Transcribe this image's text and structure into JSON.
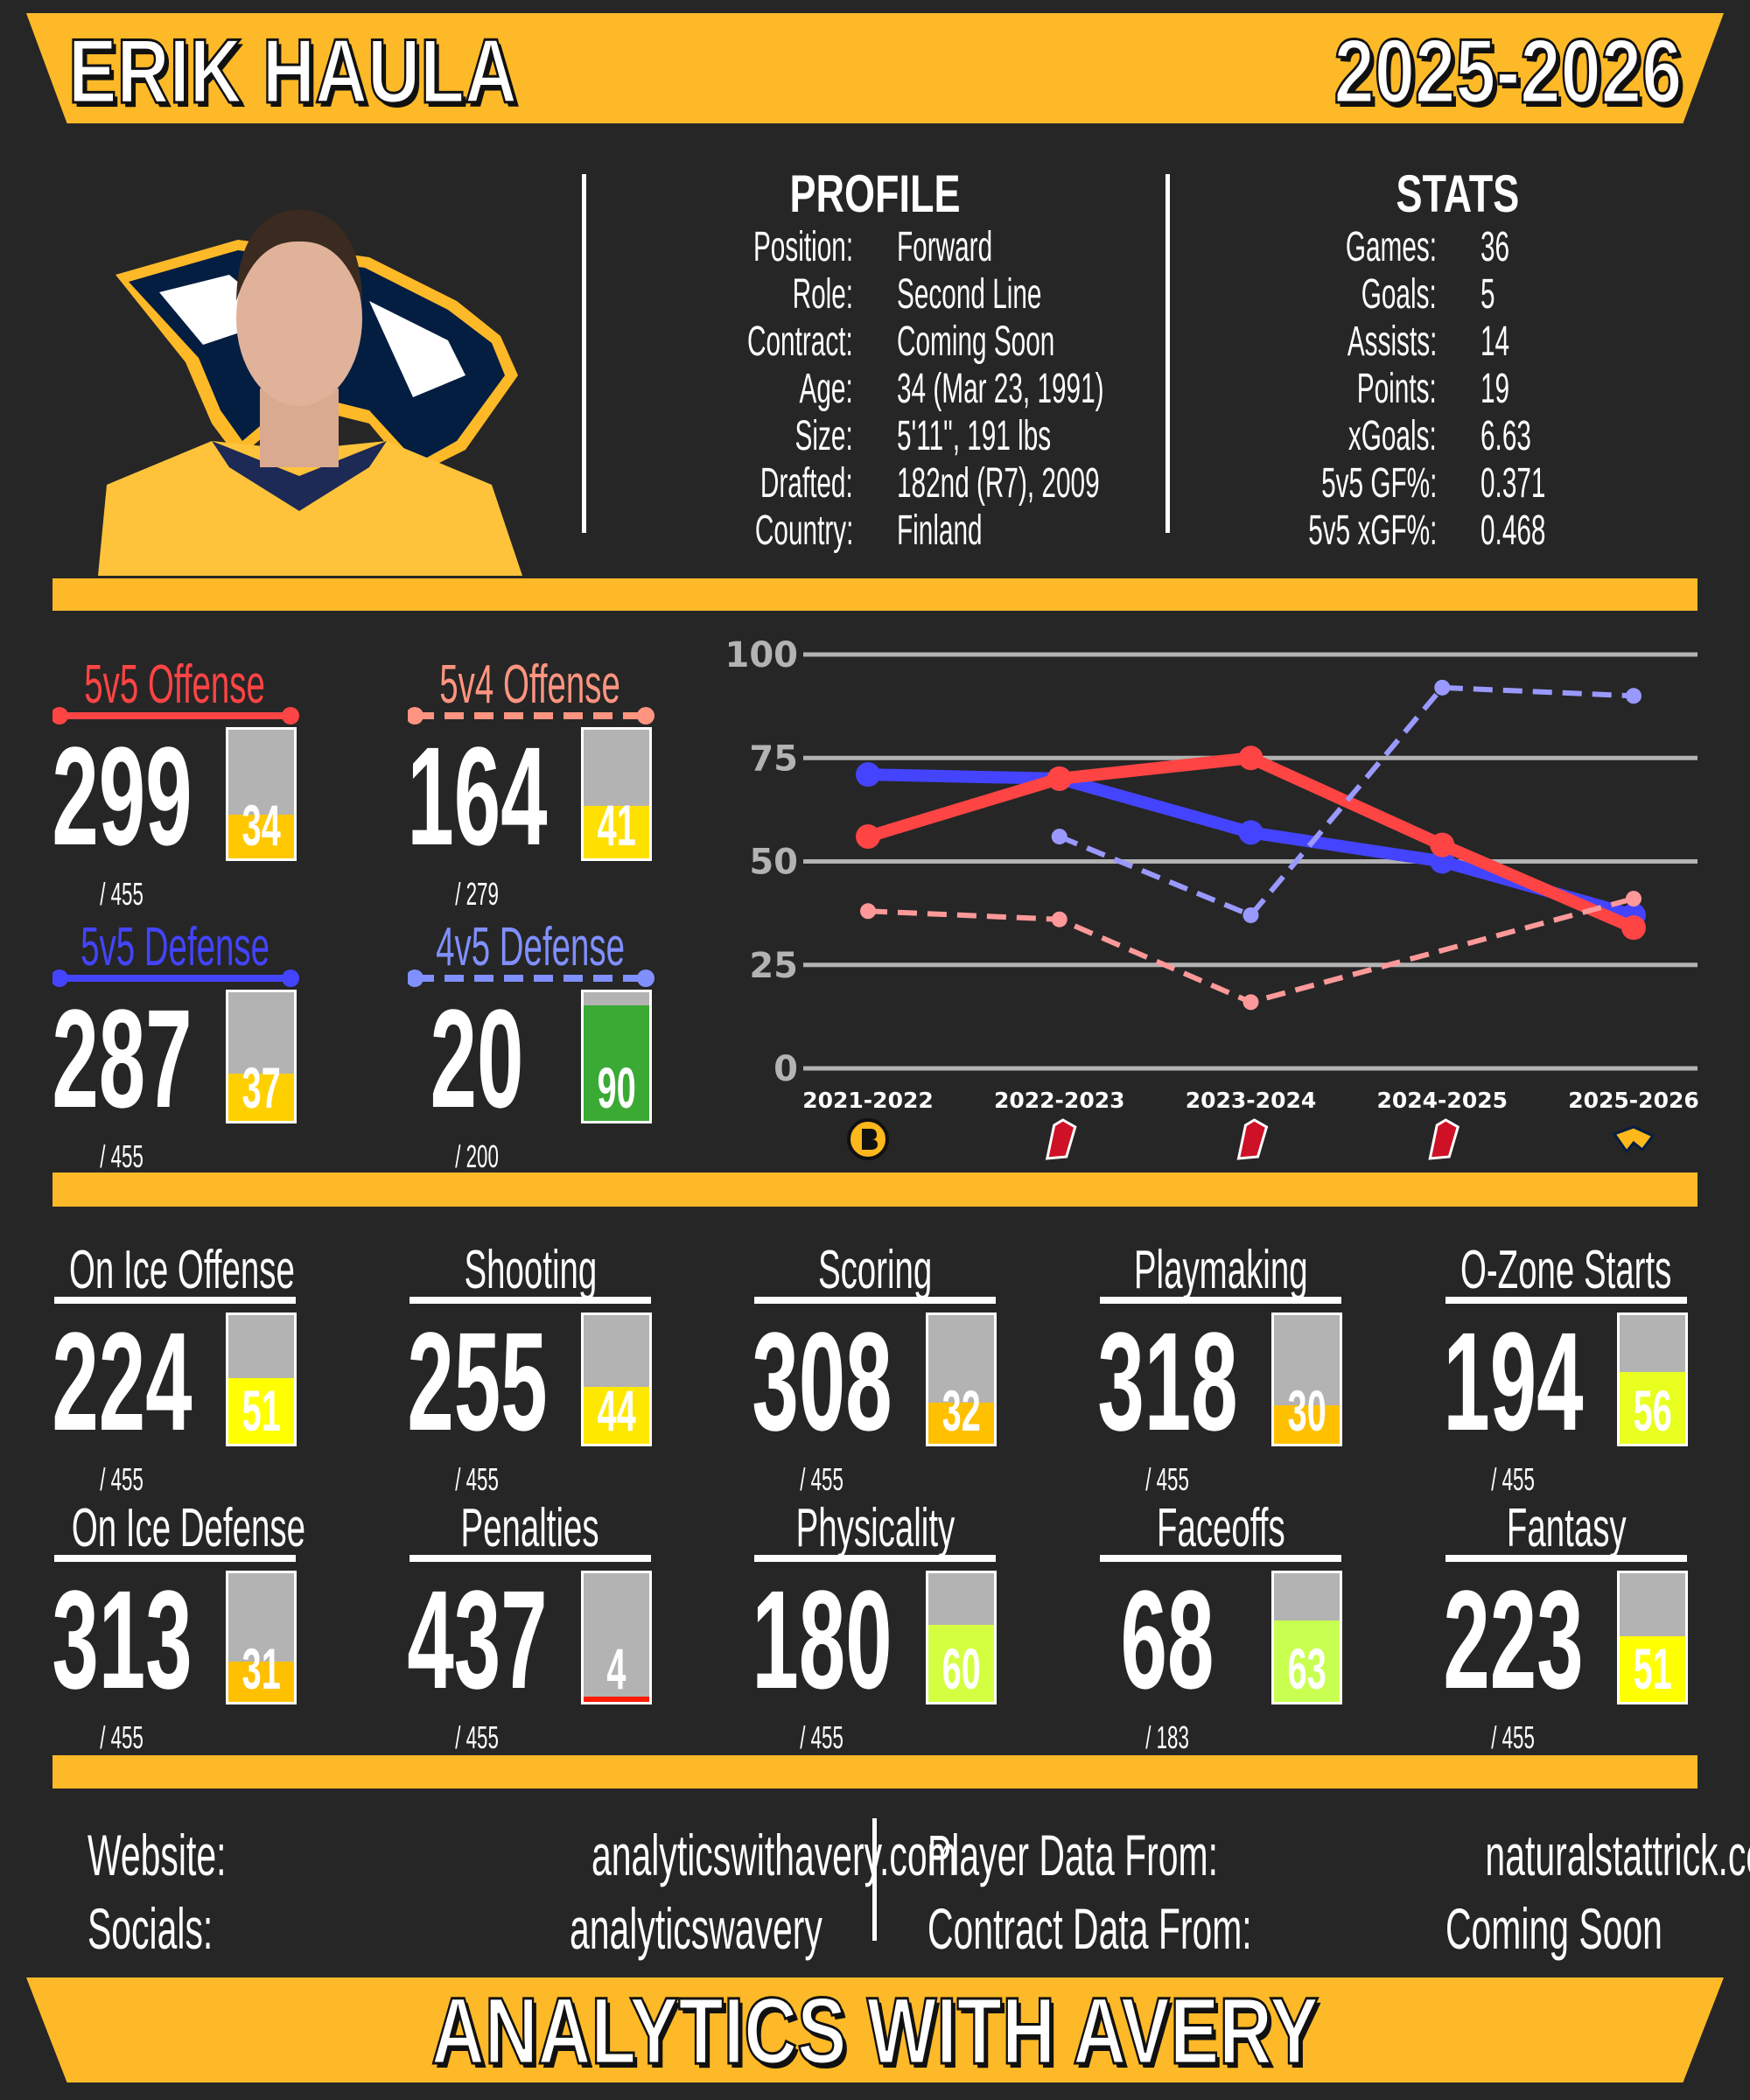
{
  "header": {
    "player_name": "ERIK HAULA",
    "season": "2025-2026"
  },
  "profile": {
    "title": "PROFILE",
    "rows": [
      {
        "label": "Position:",
        "value": "Forward"
      },
      {
        "label": "Role:",
        "value": "Second Line"
      },
      {
        "label": "Contract:",
        "value": "Coming Soon"
      },
      {
        "label": "Age:",
        "value": "34 (Mar 23, 1991)"
      },
      {
        "label": "Size:",
        "value": "5'11\", 191 lbs"
      },
      {
        "label": "Drafted:",
        "value": "182nd (R7), 2009"
      },
      {
        "label": "Country:",
        "value": "Finland"
      }
    ]
  },
  "stats": {
    "title": "STATS",
    "rows": [
      {
        "label": "Games:",
        "value": "36"
      },
      {
        "label": "Goals:",
        "value": "5"
      },
      {
        "label": "Assists:",
        "value": "14"
      },
      {
        "label": "Points:",
        "value": "19"
      },
      {
        "label": "xGoals:",
        "value": "6.63"
      },
      {
        "label": "5v5 GF%:",
        "value": "0.371"
      },
      {
        "label": "5v5 xGF%:",
        "value": "0.468"
      }
    ]
  },
  "ratings": [
    {
      "title": "5v5 Offense",
      "rank": "299",
      "total": "/ 455",
      "percentile": 34,
      "title_color": "#FF4444",
      "bar_color": "#FFC800",
      "line": "solid"
    },
    {
      "title": "5v4 Offense",
      "rank": "164",
      "total": "/ 279",
      "percentile": 41,
      "title_color": "#FF9580",
      "bar_color": "#FFE000",
      "line": "dashed"
    },
    {
      "title": "5v5 Defense",
      "rank": "287",
      "total": "/ 455",
      "percentile": 37,
      "title_color": "#4444FF",
      "bar_color": "#FFD000",
      "line": "solid"
    },
    {
      "title": "4v5 Defense",
      "rank": "20",
      "total": "/ 200",
      "percentile": 90,
      "title_color": "#8090FF",
      "bar_color": "#3AAA35",
      "line": "dashed"
    }
  ],
  "categories": [
    {
      "title": "On Ice Offense",
      "rank": "224",
      "total": "/ 455",
      "percentile": 51,
      "bar_color": "#FFFF00"
    },
    {
      "title": "Shooting",
      "rank": "255",
      "total": "/ 455",
      "percentile": 44,
      "bar_color": "#FFE800"
    },
    {
      "title": "Scoring",
      "rank": "308",
      "total": "/ 455",
      "percentile": 32,
      "bar_color": "#FFC000"
    },
    {
      "title": "Playmaking",
      "rank": "318",
      "total": "/ 455",
      "percentile": 30,
      "bar_color": "#FFC000"
    },
    {
      "title": "O-Zone Starts",
      "rank": "194",
      "total": "/ 455",
      "percentile": 56,
      "bar_color": "#E8FF20"
    },
    {
      "title": "On Ice Defense",
      "rank": "313",
      "total": "/ 455",
      "percentile": 31,
      "bar_color": "#FFC000"
    },
    {
      "title": "Penalties",
      "rank": "437",
      "total": "/ 455",
      "percentile": 4,
      "bar_color": "#FF1A00"
    },
    {
      "title": "Physicality",
      "rank": "180",
      "total": "/ 455",
      "percentile": 60,
      "bar_color": "#D4FF40"
    },
    {
      "title": "Faceoffs",
      "rank": "68",
      "total": "/ 183",
      "percentile": 63,
      "bar_color": "#C8FF50"
    },
    {
      "title": "Fantasy",
      "rank": "223",
      "total": "/ 455",
      "percentile": 51,
      "bar_color": "#FFFF00"
    }
  ],
  "chart_data": {
    "type": "line",
    "categories": [
      "2021-2022",
      "2022-2023",
      "2023-2024",
      "2024-2025",
      "2025-2026"
    ],
    "team_logos": [
      "boston-bruins-logo",
      "new-jersey-devils-logo",
      "new-jersey-devils-logo",
      "new-jersey-devils-logo",
      "nashville-predators-logo"
    ],
    "ylim": [
      0,
      100
    ],
    "yticks": [
      "0",
      "25",
      "50",
      "75",
      "100"
    ],
    "grid": true,
    "series": [
      {
        "key": "5v5 Defense",
        "values": [
          71,
          70,
          57,
          50,
          37
        ],
        "color": "#4444FF",
        "style": "solid"
      },
      {
        "key": "5v5 Offense",
        "values": [
          56,
          70,
          75,
          54,
          34
        ],
        "color": "#FF4444",
        "style": "solid"
      },
      {
        "key": "4v5 Defense",
        "values": [
          null,
          56,
          37,
          92,
          90
        ],
        "color": "#9999FF",
        "style": "dashed"
      },
      {
        "key": "5v4 Offense",
        "values": [
          38,
          36,
          16,
          null,
          41
        ],
        "color": "#FF9999",
        "style": "dashed"
      }
    ]
  },
  "footer": {
    "website_label": "Website:",
    "website": "analyticswithavery.com",
    "socials_label": "Socials:",
    "socials": "analyticswavery",
    "player_data_label": "Player Data From:",
    "player_data": "naturalstattrick.com",
    "contract_data_label": "Contract Data From:",
    "contract_data": "Coming Soon",
    "brand": "ANALYTICS WITH AVERY"
  },
  "colors": {
    "accent": "#FDB927",
    "background": "#262626",
    "bar_bg": "#B3B3B3"
  }
}
